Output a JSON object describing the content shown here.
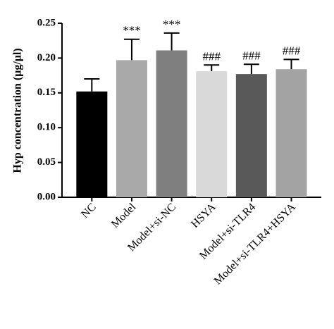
{
  "chart_data": {
    "type": "bar",
    "y_label": "Hyp concentration (μg/μl)",
    "categories": [
      "NC",
      "Model",
      "Model+si-NC",
      "HSYA",
      "Model+si-TLR4",
      "Model+si-TLR4+HSYA"
    ],
    "values": [
      0.152,
      0.197,
      0.211,
      0.181,
      0.177,
      0.184
    ],
    "errors": [
      0.018,
      0.03,
      0.025,
      0.009,
      0.014,
      0.014
    ],
    "colors": [
      "#000000",
      "#a9a9a9",
      "#7f7f7f",
      "#d9d9d9",
      "#595959",
      "#a3a3a3"
    ],
    "annotations": [
      null,
      "***",
      "***",
      "###",
      "###",
      "###"
    ],
    "ylim": [
      0,
      0.25
    ],
    "yticks": [
      {
        "value": 0,
        "label": "0.00"
      },
      {
        "value": 0.05,
        "label": "0.05"
      },
      {
        "value": 0.1,
        "label": "0.10"
      },
      {
        "value": 0.15,
        "label": "0.15"
      },
      {
        "value": 0.2,
        "label": "0.20"
      },
      {
        "value": 0.25,
        "label": "0.25"
      }
    ]
  }
}
